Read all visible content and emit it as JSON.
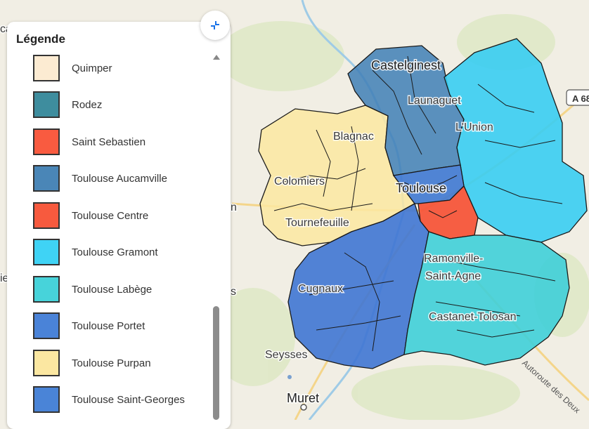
{
  "legend": {
    "title": "Légende",
    "items": [
      {
        "label": "Quimper",
        "color": "#fcebd2"
      },
      {
        "label": "Rodez",
        "color": "#3e8d9e"
      },
      {
        "label": "Saint Sebastien",
        "color": "#f95b40"
      },
      {
        "label": "Toulouse Aucamville",
        "color": "#4a86b7"
      },
      {
        "label": "Toulouse Centre",
        "color": "#f75a3e"
      },
      {
        "label": "Toulouse Gramont",
        "color": "#3fd3f5"
      },
      {
        "label": "Toulouse Labège",
        "color": "#47d3da"
      },
      {
        "label": "Toulouse Portet",
        "color": "#4a83d8"
      },
      {
        "label": "Toulouse Purpan",
        "color": "#fbe7a1"
      },
      {
        "label": "Toulouse Saint-Georges",
        "color": "#4a84d7"
      }
    ]
  },
  "map": {
    "places": [
      {
        "name": "Castelginest",
        "cls": "big"
      },
      {
        "name": "Launaguet",
        "cls": ""
      },
      {
        "name": "L'Union",
        "cls": ""
      },
      {
        "name": "Blagnac",
        "cls": ""
      },
      {
        "name": "Colomiers",
        "cls": ""
      },
      {
        "name": "Toulouse",
        "cls": "big"
      },
      {
        "name": "Tournefeuille",
        "cls": ""
      },
      {
        "name": "Ramonville-",
        "cls": ""
      },
      {
        "name": "Saint-Agne",
        "cls": ""
      },
      {
        "name": "Cugnaux",
        "cls": ""
      },
      {
        "name": "Castanet-Tolosan",
        "cls": ""
      },
      {
        "name": "Seysses",
        "cls": ""
      },
      {
        "name": "Muret",
        "cls": "big"
      }
    ],
    "road_badge": "A 68",
    "motorway": "Autoroute des Deux",
    "edge_fragments": [
      "ca",
      "n",
      "s",
      "ie"
    ]
  }
}
